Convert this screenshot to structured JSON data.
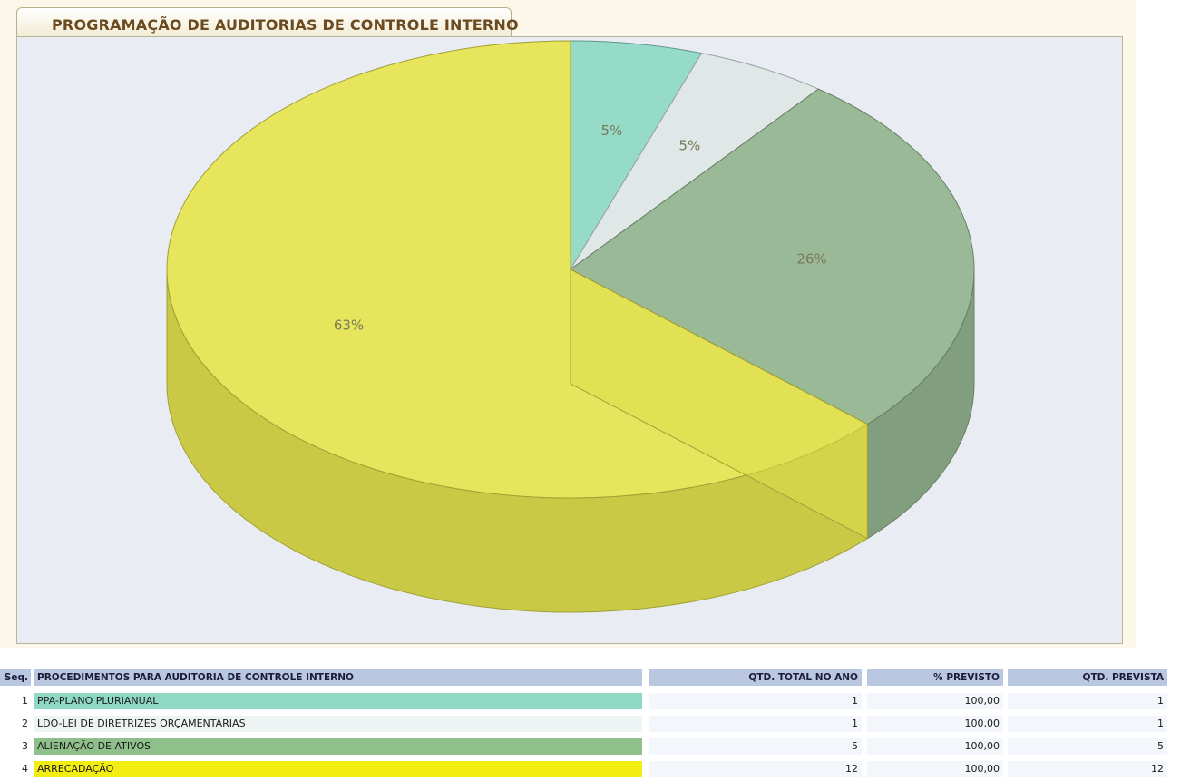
{
  "panel": {
    "title": "PROGRAMAÇÃO DE AUDITORIAS DE CONTROLE INTERNO"
  },
  "chart_data": {
    "type": "pie",
    "style": "3d",
    "slices": [
      {
        "label": "PPA-PLANO PLURIANUAL",
        "value": 1,
        "percent_label": "5%",
        "color": "#8ed8c4"
      },
      {
        "label": "LDO-LEI DE DIRETRIZES ORÇAMENTÁRIAS",
        "value": 1,
        "percent_label": "5%",
        "color": "#dde6e6"
      },
      {
        "label": "ALIENAÇÃO DE ATIVOS",
        "value": 5,
        "percent_label": "26%",
        "color": "#93b58f"
      },
      {
        "label": "ARRECADAÇÃO",
        "value": 12,
        "percent_label": "63%",
        "color": "#e5e44e"
      }
    ]
  },
  "table": {
    "headers": {
      "seq": "Seq.",
      "procedimento": "PROCEDIMENTOS PARA AUDITORIA DE CONTROLE INTERNO",
      "qtd_total": "QTD. TOTAL NO ANO",
      "pct_previsto": "% PREVISTO",
      "qtd_prevista": "QTD. PREVISTA"
    },
    "rows": [
      {
        "seq": "1",
        "procedimento": "PPA-PLANO PLURIANUAL",
        "qtd_total": "1",
        "pct_previsto": "100,00",
        "qtd_prevista": "1",
        "color": "#8ed8c4"
      },
      {
        "seq": "2",
        "procedimento": "LDO-LEI DE DIRETRIZES ORÇAMENTÁRIAS",
        "qtd_total": "1",
        "pct_previsto": "100,00",
        "qtd_prevista": "1",
        "color": "#eef3f3"
      },
      {
        "seq": "3",
        "procedimento": "ALIENAÇÃO DE ATIVOS",
        "qtd_total": "5",
        "pct_previsto": "100,00",
        "qtd_prevista": "5",
        "color": "#8fbf8a"
      },
      {
        "seq": "4",
        "procedimento": "ARRECADAÇÃO",
        "qtd_total": "12",
        "pct_previsto": "100,00",
        "qtd_prevista": "12",
        "color": "#f2ee12"
      }
    ]
  }
}
